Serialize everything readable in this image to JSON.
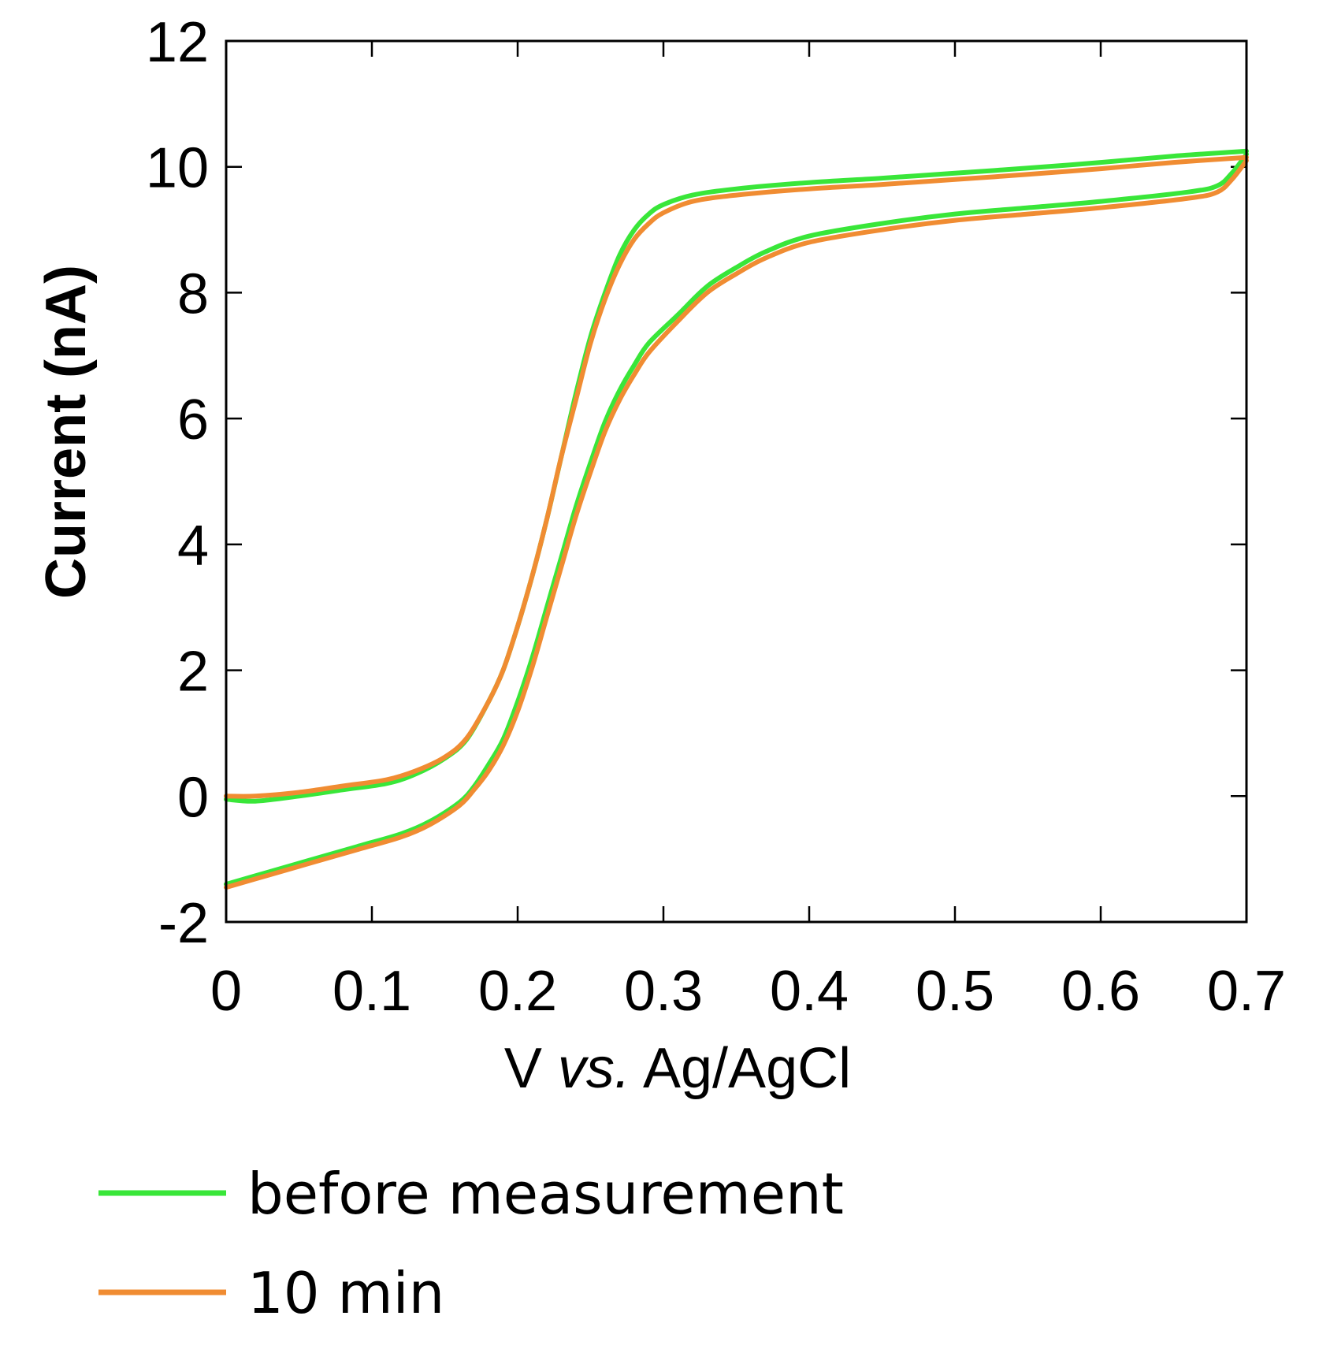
{
  "chart_data": {
    "type": "line",
    "title": "",
    "xlabel": {
      "pre": "V ",
      "italic": "vs.",
      "post": " Ag/AgCl"
    },
    "ylabel": "Current (nA)",
    "xlim": [
      0,
      0.7
    ],
    "ylim": [
      -2,
      12
    ],
    "xticks": [
      "0",
      "0.1",
      "0.2",
      "0.3",
      "0.4",
      "0.5",
      "0.6",
      "0.7"
    ],
    "yticks": [
      "-2",
      "0",
      "2",
      "4",
      "6",
      "8",
      "10",
      "12"
    ],
    "grid": false,
    "legend_position": "bottom-left",
    "series": [
      {
        "name": "before measurement",
        "color": "#39e639",
        "forward": {
          "x": [
            0.0,
            0.02,
            0.05,
            0.08,
            0.11,
            0.13,
            0.15,
            0.165,
            0.18,
            0.19,
            0.2,
            0.21,
            0.22,
            0.23,
            0.24,
            0.25,
            0.26,
            0.27,
            0.28,
            0.29,
            0.3,
            0.32,
            0.35,
            0.4,
            0.45,
            0.5,
            0.55,
            0.6,
            0.65,
            0.7
          ],
          "y": [
            -0.05,
            -0.08,
            0.0,
            0.1,
            0.2,
            0.35,
            0.6,
            0.9,
            1.5,
            2.0,
            2.7,
            3.5,
            4.4,
            5.4,
            6.4,
            7.3,
            8.0,
            8.6,
            9.0,
            9.25,
            9.4,
            9.55,
            9.65,
            9.75,
            9.82,
            9.9,
            9.98,
            10.07,
            10.17,
            10.25
          ]
        },
        "reverse": {
          "x": [
            0.7,
            0.69,
            0.68,
            0.66,
            0.6,
            0.55,
            0.5,
            0.45,
            0.4,
            0.37,
            0.35,
            0.33,
            0.31,
            0.29,
            0.28,
            0.27,
            0.26,
            0.25,
            0.24,
            0.23,
            0.22,
            0.21,
            0.2,
            0.19,
            0.18,
            0.17,
            0.16,
            0.14,
            0.12,
            0.09,
            0.06,
            0.03,
            0.0
          ],
          "y": [
            10.2,
            9.9,
            9.7,
            9.6,
            9.45,
            9.35,
            9.25,
            9.1,
            8.9,
            8.65,
            8.4,
            8.1,
            7.65,
            7.2,
            6.85,
            6.45,
            5.95,
            5.3,
            4.6,
            3.8,
            3.0,
            2.2,
            1.5,
            0.9,
            0.5,
            0.15,
            -0.1,
            -0.4,
            -0.6,
            -0.8,
            -1.0,
            -1.2,
            -1.4
          ]
        }
      },
      {
        "name": "10 min",
        "color": "#f08c32",
        "forward": {
          "x": [
            0.0,
            0.02,
            0.05,
            0.08,
            0.11,
            0.13,
            0.15,
            0.165,
            0.18,
            0.19,
            0.2,
            0.21,
            0.22,
            0.23,
            0.24,
            0.25,
            0.26,
            0.27,
            0.28,
            0.29,
            0.3,
            0.32,
            0.35,
            0.4,
            0.45,
            0.5,
            0.55,
            0.6,
            0.65,
            0.7
          ],
          "y": [
            0.0,
            0.0,
            0.06,
            0.16,
            0.26,
            0.4,
            0.62,
            0.92,
            1.5,
            2.0,
            2.7,
            3.5,
            4.4,
            5.4,
            6.3,
            7.2,
            7.9,
            8.45,
            8.85,
            9.1,
            9.27,
            9.45,
            9.55,
            9.65,
            9.72,
            9.8,
            9.88,
            9.97,
            10.07,
            10.15
          ]
        },
        "reverse": {
          "x": [
            0.7,
            0.69,
            0.68,
            0.66,
            0.6,
            0.55,
            0.5,
            0.45,
            0.4,
            0.37,
            0.35,
            0.33,
            0.31,
            0.29,
            0.28,
            0.27,
            0.26,
            0.25,
            0.24,
            0.23,
            0.22,
            0.21,
            0.2,
            0.19,
            0.18,
            0.17,
            0.16,
            0.14,
            0.12,
            0.09,
            0.06,
            0.03,
            0.0
          ],
          "y": [
            10.1,
            9.8,
            9.6,
            9.5,
            9.35,
            9.25,
            9.15,
            9.0,
            8.8,
            8.55,
            8.3,
            8.0,
            7.55,
            7.05,
            6.7,
            6.3,
            5.8,
            5.15,
            4.45,
            3.65,
            2.85,
            2.05,
            1.35,
            0.8,
            0.4,
            0.1,
            -0.15,
            -0.45,
            -0.65,
            -0.85,
            -1.05,
            -1.25,
            -1.45
          ]
        }
      }
    ]
  }
}
